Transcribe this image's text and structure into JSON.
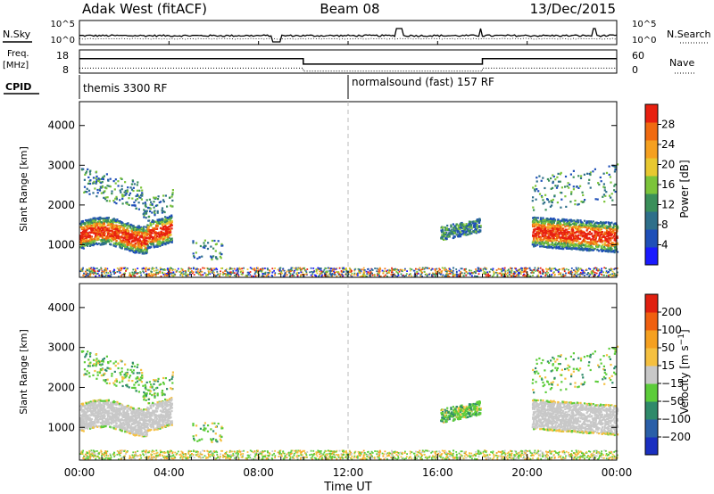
{
  "header": {
    "station": "Adak West (fitACF)",
    "beam": "Beam 08",
    "date": "13/Dec/2015"
  },
  "params": {
    "nsky_label": "N.Sky",
    "nsearch_label": "N.Search",
    "freq_label_line1": "Freq.",
    "freq_label_line2": "[MHz]",
    "nave_label": "Nave",
    "cpid_label": "CPID",
    "noise_ticks": [
      "10^5",
      "10^0"
    ],
    "freq_ticks": [
      "18",
      "8"
    ],
    "nave_ticks": [
      "60",
      "0"
    ],
    "cpid_segments": [
      {
        "name": "themis 3300 RF",
        "start_hour": 0
      },
      {
        "name": "normalsound (fast) 157 RF",
        "start_hour": 12
      }
    ],
    "freq_series": [
      {
        "hour": 0,
        "freq": 15.0
      },
      {
        "hour": 10,
        "freq": 15.0
      },
      {
        "hour": 10,
        "freq": 11.2
      },
      {
        "hour": 18,
        "freq": 11.2
      },
      {
        "hour": 18,
        "freq": 15.0
      },
      {
        "hour": 24,
        "freq": 15.0
      }
    ],
    "nave_series": [
      {
        "hour": 0,
        "nave": 13
      },
      {
        "hour": 10,
        "nave": 13
      },
      {
        "hour": 10,
        "nave": 5
      },
      {
        "hour": 18,
        "nave": 5
      },
      {
        "hour": 18,
        "nave": 13
      },
      {
        "hour": 24,
        "nave": 13
      }
    ]
  },
  "chart_data": [
    {
      "type": "heatmap",
      "name": "power",
      "ylabel": "Slant Range [km]",
      "ylim": [
        180,
        4600
      ],
      "yticks": [
        1000,
        2000,
        3000,
        4000
      ],
      "xlim": [
        0,
        24
      ],
      "colorbar_label": "Power [dB]",
      "colorbar_ticks": [
        4,
        8,
        12,
        16,
        20,
        24,
        28
      ],
      "colorbar_range": [
        0,
        32
      ],
      "colors": [
        "#1a1aff",
        "#1f4fb8",
        "#2e6f8a",
        "#3a8f5a",
        "#7cc43a",
        "#e8c830",
        "#f5a020",
        "#f06a10",
        "#e82010"
      ]
    },
    {
      "type": "heatmap",
      "name": "velocity",
      "ylabel": "Slant Range [km]",
      "ylim": [
        180,
        4600
      ],
      "yticks": [
        1000,
        2000,
        3000,
        4000
      ],
      "xlim": [
        0,
        24
      ],
      "xlabel": "Time UT",
      "xticks": [
        "00:00",
        "04:00",
        "08:00",
        "12:00",
        "16:00",
        "20:00",
        "00:00"
      ],
      "colorbar_label": "Velocity [m s^-1]",
      "colorbar_ticks": [
        "200",
        "100",
        "50",
        "15",
        "-15",
        "-50",
        "-100",
        "-200"
      ],
      "colors": [
        "#1a2fc0",
        "#2a5fa8",
        "#2f8a6a",
        "#5ccc3a",
        "#c8c8c8",
        "#f5c040",
        "#f5a020",
        "#f06010",
        "#e02010"
      ]
    }
  ]
}
